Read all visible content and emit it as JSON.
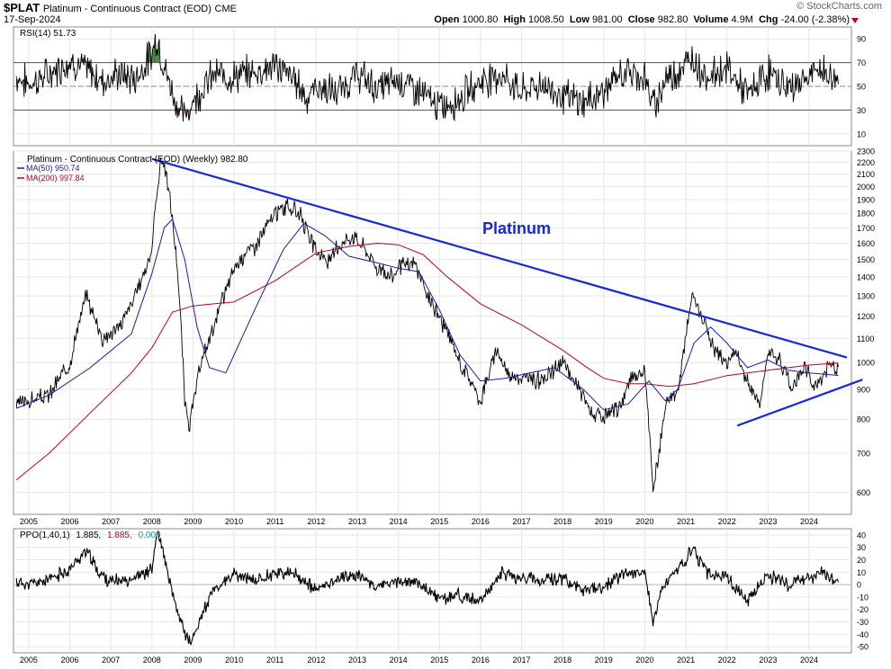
{
  "header": {
    "symbol": "$PLAT",
    "name": "Platinum - Continuous Contract (EOD)",
    "exchange": "CME",
    "date": "17-Sep-2024",
    "brand": "© StockCharts.com",
    "ohlc": {
      "open_label": "Open",
      "open": "1000.80",
      "high_label": "High",
      "high": "1008.50",
      "low_label": "Low",
      "low": "981.00",
      "close_label": "Close",
      "close": "982.80",
      "volume_label": "Volume",
      "volume": "4.9M",
      "chg_label": "Chg",
      "chg": "-24.00 (-2.38%)"
    }
  },
  "colors": {
    "price": "#000000",
    "ma50": "#1a1aa8",
    "ma200": "#c0001a",
    "trendline": "#1428e0",
    "annotation": "#1428e0",
    "rsi_over": "#3c7a3c",
    "rsi_under": "#8b4a4a",
    "ppo_signal": "#c0001a",
    "ppo_hist": "#2090a0",
    "grid": "#e6e6e6"
  },
  "chart_data": [
    {
      "panel": "rsi",
      "type": "line",
      "legend": "RSI(14) 51.73",
      "ylim": [
        0,
        100
      ],
      "yticks": [
        10,
        30,
        50,
        70,
        90
      ],
      "reference_lines": [
        30,
        50,
        70
      ],
      "x_years": [
        2005,
        2006,
        2007,
        2008,
        2009,
        2010,
        2011,
        2012,
        2013,
        2014,
        2015,
        2016,
        2017,
        2018,
        2019,
        2020,
        2021,
        2022,
        2023,
        2024
      ],
      "x": [
        2004.7,
        2005.0,
        2005.5,
        2006.0,
        2006.4,
        2006.8,
        2007.2,
        2007.6,
        2008.0,
        2008.12,
        2008.3,
        2008.6,
        2008.8,
        2009.0,
        2009.5,
        2010.0,
        2010.5,
        2011.0,
        2011.5,
        2011.8,
        2012.0,
        2012.5,
        2013.0,
        2013.5,
        2014.0,
        2014.5,
        2014.8,
        2015.0,
        2015.5,
        2016.0,
        2016.5,
        2017.0,
        2017.5,
        2018.0,
        2018.5,
        2019.0,
        2019.5,
        2020.0,
        2020.2,
        2020.5,
        2021.0,
        2021.15,
        2021.5,
        2022.0,
        2022.5,
        2023.0,
        2023.5,
        2024.0,
        2024.3,
        2024.71
      ],
      "y": [
        58,
        52,
        60,
        72,
        64,
        55,
        60,
        56,
        78,
        92,
        66,
        35,
        24,
        38,
        60,
        58,
        62,
        68,
        55,
        40,
        50,
        44,
        60,
        48,
        56,
        46,
        38,
        32,
        40,
        55,
        60,
        45,
        52,
        42,
        36,
        46,
        62,
        58,
        32,
        56,
        68,
        74,
        58,
        66,
        42,
        62,
        48,
        58,
        64,
        51.73
      ]
    },
    {
      "panel": "price",
      "type": "line",
      "title": "Platinum - Continuous Contract (EOD) (Weekly) 982.80",
      "annotation": "Platinum",
      "ylim": [
        550,
        2300
      ],
      "log_scale": true,
      "yticks": [
        600,
        700,
        800,
        900,
        1000,
        1100,
        1200,
        1300,
        1400,
        1500,
        1600,
        1700,
        1800,
        1900,
        2000,
        2100,
        2200,
        2300
      ],
      "x_years": [
        2005,
        2006,
        2007,
        2008,
        2009,
        2010,
        2011,
        2012,
        2013,
        2014,
        2015,
        2016,
        2017,
        2018,
        2019,
        2020,
        2021,
        2022,
        2023,
        2024
      ],
      "series": [
        {
          "name": "Platinum - Continuous Contract (EOD) (Weekly) 982.80",
          "x": [
            2004.7,
            2005.0,
            2005.5,
            2006.0,
            2006.4,
            2006.6,
            2006.8,
            2007.2,
            2007.6,
            2008.0,
            2008.15,
            2008.25,
            2008.4,
            2008.6,
            2008.8,
            2008.92,
            2009.2,
            2009.5,
            2010.0,
            2010.3,
            2010.5,
            2011.0,
            2011.3,
            2011.6,
            2011.8,
            2012.0,
            2012.3,
            2012.6,
            2012.9,
            2013.1,
            2013.5,
            2013.8,
            2014.0,
            2014.4,
            2014.7,
            2015.0,
            2015.5,
            2016.0,
            2016.4,
            2016.7,
            2017.0,
            2017.5,
            2018.0,
            2018.4,
            2018.7,
            2019.0,
            2019.4,
            2019.7,
            2020.0,
            2020.2,
            2020.35,
            2020.5,
            2020.8,
            2021.0,
            2021.15,
            2021.4,
            2021.7,
            2022.0,
            2022.2,
            2022.5,
            2022.8,
            2023.0,
            2023.3,
            2023.6,
            2023.9,
            2024.1,
            2024.3,
            2024.5,
            2024.71
          ],
          "y": [
            850,
            860,
            880,
            1000,
            1300,
            1200,
            1100,
            1150,
            1300,
            1550,
            2050,
            2250,
            2000,
            1500,
            850,
            780,
            1000,
            1150,
            1450,
            1550,
            1580,
            1800,
            1850,
            1800,
            1650,
            1550,
            1480,
            1600,
            1650,
            1600,
            1450,
            1400,
            1450,
            1480,
            1300,
            1200,
            1000,
            860,
            1050,
            950,
            940,
            930,
            1000,
            900,
            820,
            800,
            840,
            950,
            960,
            600,
            700,
            850,
            900,
            1100,
            1300,
            1200,
            1050,
            1000,
            1050,
            920,
            850,
            1050,
            1000,
            900,
            1000,
            900,
            930,
            1000,
            982.8
          ]
        },
        {
          "name": "MA(50) 950.74",
          "x": [
            2004.7,
            2005.5,
            2006.5,
            2007.5,
            2008.0,
            2008.3,
            2008.5,
            2008.8,
            2009.1,
            2009.4,
            2009.8,
            2010.5,
            2011.2,
            2011.7,
            2012.2,
            2012.8,
            2013.5,
            2014.0,
            2014.5,
            2015.0,
            2015.5,
            2016.0,
            2016.6,
            2017.2,
            2017.8,
            2018.5,
            2019.0,
            2019.6,
            2020.1,
            2020.5,
            2020.8,
            2021.2,
            2021.6,
            2022.0,
            2022.5,
            2023.0,
            2023.5,
            2024.0,
            2024.71
          ],
          "y": [
            835,
            880,
            980,
            1120,
            1420,
            1700,
            1760,
            1500,
            1150,
            980,
            960,
            1230,
            1560,
            1730,
            1650,
            1520,
            1480,
            1450,
            1430,
            1230,
            1030,
            930,
            940,
            960,
            980,
            900,
            830,
            850,
            930,
            860,
            900,
            1080,
            1150,
            1080,
            980,
            1010,
            970,
            960,
            950.74
          ]
        },
        {
          "name": "MA(200) 997.84",
          "x": [
            2004.7,
            2005.5,
            2006.5,
            2007.5,
            2008.0,
            2008.5,
            2009.0,
            2009.5,
            2010.0,
            2011.0,
            2012.0,
            2012.8,
            2013.5,
            2014.0,
            2014.6,
            2015.2,
            2016.0,
            2017.0,
            2018.0,
            2018.6,
            2019.0,
            2019.6,
            2020.0,
            2020.6,
            2021.2,
            2022.0,
            2023.0,
            2024.0,
            2024.71
          ],
          "y": [
            630,
            700,
            820,
            960,
            1060,
            1220,
            1250,
            1260,
            1270,
            1380,
            1540,
            1580,
            1600,
            1590,
            1530,
            1400,
            1260,
            1160,
            1050,
            980,
            940,
            920,
            920,
            910,
            920,
            950,
            970,
            990,
            997.84
          ]
        }
      ],
      "trendlines": [
        {
          "x": [
            2008.0,
            2024.92
          ],
          "y": [
            2230,
            1020
          ]
        },
        {
          "x": [
            2022.25,
            2025.3
          ],
          "y": [
            780,
            935
          ]
        }
      ]
    },
    {
      "panel": "ppo",
      "type": "line",
      "legend_name": "PPO(1,40,1)",
      "legend_value": "1.885,",
      "legend_signal": "1.885,",
      "legend_hist": "0.000",
      "ylim": [
        -55,
        45
      ],
      "yticks": [
        -50,
        -40,
        -30,
        -20,
        -10,
        0,
        10,
        20,
        30,
        40
      ],
      "x_years": [
        2005,
        2006,
        2007,
        2008,
        2009,
        2010,
        2011,
        2012,
        2013,
        2014,
        2015,
        2016,
        2017,
        2018,
        2019,
        2020,
        2021,
        2022,
        2023,
        2024
      ],
      "x": [
        2004.7,
        2005.0,
        2005.5,
        2006.0,
        2006.4,
        2006.7,
        2007.0,
        2007.5,
        2008.0,
        2008.12,
        2008.25,
        2008.4,
        2008.6,
        2008.8,
        2008.95,
        2009.2,
        2009.5,
        2010.0,
        2010.5,
        2011.0,
        2011.5,
        2012.0,
        2012.5,
        2013.0,
        2013.5,
        2014.0,
        2014.5,
        2015.0,
        2015.5,
        2016.0,
        2016.5,
        2017.0,
        2017.5,
        2018.0,
        2018.5,
        2019.0,
        2019.5,
        2020.0,
        2020.2,
        2020.4,
        2020.7,
        2021.0,
        2021.15,
        2021.5,
        2022.0,
        2022.5,
        2023.0,
        2023.5,
        2024.0,
        2024.3,
        2024.71
      ],
      "y": [
        2,
        0,
        4,
        12,
        28,
        10,
        2,
        5,
        12,
        42,
        30,
        5,
        -20,
        -38,
        -48,
        -25,
        -5,
        8,
        3,
        10,
        8,
        -5,
        5,
        8,
        -2,
        3,
        1,
        -12,
        -8,
        -15,
        10,
        5,
        4,
        5,
        -5,
        -3,
        10,
        10,
        -32,
        -5,
        8,
        20,
        30,
        10,
        5,
        -12,
        8,
        0,
        5,
        10,
        1.885
      ]
    }
  ]
}
